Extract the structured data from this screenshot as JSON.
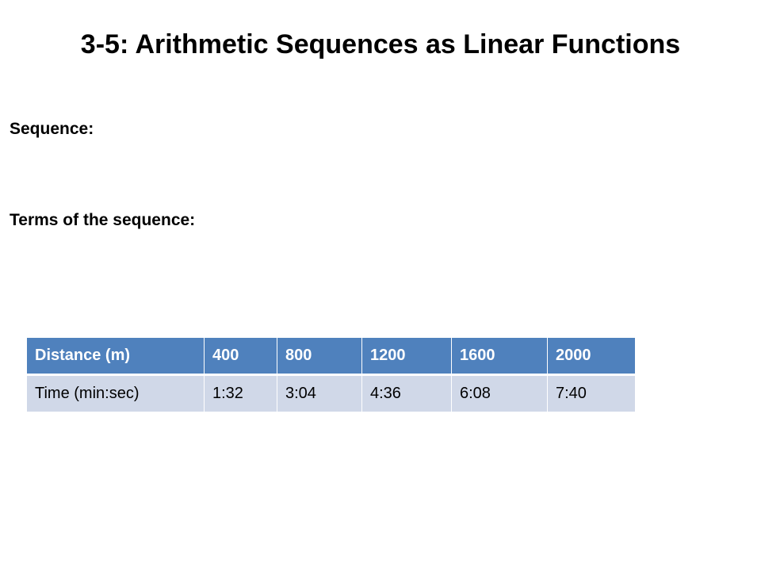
{
  "slide": {
    "title": "3-5:  Arithmetic Sequences as Linear Functions",
    "labels": {
      "sequence": "Sequence:",
      "terms": "Terms of the sequence:"
    }
  },
  "table": {
    "header_row": [
      "Distance (m)",
      "400",
      "800",
      "1200",
      "1600",
      "2000"
    ],
    "body_row": [
      "Time (min:sec)",
      "1:32",
      "3:04",
      "4:36",
      "6:08",
      "7:40"
    ],
    "colors": {
      "header_fill": "#4f81bd",
      "header_text": "#ffffff",
      "body_fill": "#d0d8e8",
      "body_text": "#000000"
    }
  }
}
